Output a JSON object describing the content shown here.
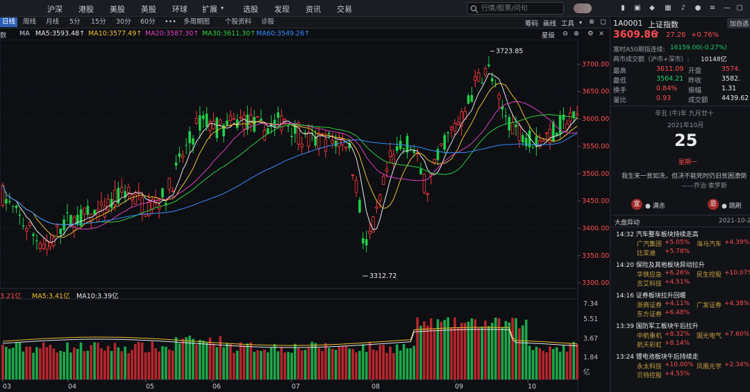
{
  "nav": {
    "items": [
      "沪深",
      "港股",
      "美股",
      "英股",
      "环球",
      "扩展",
      "选股",
      "发现",
      "资讯",
      "交易"
    ],
    "search_placeholder": "行情/股票/问句"
  },
  "toolbar": {
    "periods": [
      "日线",
      "周线",
      "月线",
      "5分",
      "15分",
      "30分",
      "60分",
      "•••",
      "多周期图",
      "个股资料",
      "诊股"
    ],
    "right": [
      "筹码",
      "画线",
      "工具"
    ],
    "sub_right": "星级"
  },
  "ma": {
    "label": "MA",
    "ma5": "MA5:3593.48↑",
    "ma10": "MA10:3577.49↑",
    "ma20": "MA20:3587.30↑",
    "ma30": "MA30:3611.30↑",
    "ma60": "MA60:3549.26↑"
  },
  "volume": {
    "vol": "3.21亿",
    "ma5": "MA5:3.41亿",
    "ma10": "MA10:3.39亿"
  },
  "chart_data": {
    "type": "candlestick",
    "price_ticks": [
      "3700.00",
      "3650.00",
      "3600.00",
      "3550.00",
      "3500.00",
      "3450.00",
      "3400.00",
      "3350.00",
      "3300.00"
    ],
    "volume_ticks": [
      "7.34",
      "5.51",
      "3.67",
      "1.84",
      "亿"
    ],
    "month_labels": [
      "03",
      "04",
      "05",
      "06",
      "07",
      "08",
      "09",
      "10"
    ],
    "high_label": "3723.85",
    "low_label": "3312.72",
    "ylim": [
      3290,
      3745
    ]
  },
  "panel": {
    "add_button": "加自选",
    "code": "1A0001",
    "name": "上证指数",
    "price": "3609.86",
    "arrow": "↑",
    "change": "27.26",
    "change_pct": "+0.76%",
    "a50_label": "富时A50期指连续:",
    "a50_value": "16159.00(-0.27%)",
    "turnover_label": "两市成交额（沪市+深市）:",
    "turnover_value": "10148亿",
    "stats": [
      {
        "l1": "最高",
        "v1": "3611.09",
        "l2": "开盘",
        "v2": "3574."
      },
      {
        "l1": "最低",
        "v1": "3564.21",
        "l2": "昨收",
        "v2": "3582."
      },
      {
        "l1": "换手",
        "v1": "0.84%",
        "l2": "振幅",
        "v2": "1.31"
      },
      {
        "l1": "量比",
        "v1": "0.93",
        "l2": "成交额",
        "v2": "4439.62"
      }
    ],
    "lunar": "辛丑 (牛)年 九月廿十",
    "month": "2021年10月",
    "day": "25",
    "weekday": "星期一",
    "quote": "我生来一贫如洗，但决不能死时仍旧贫困潦倒",
    "quote_author": "——乔治·索罗斯",
    "yi_label": "宜",
    "yi_text": "● 满赤",
    "ji_label": "忌",
    "ji_text": "● 跳刷",
    "news_title": "大盘异动",
    "news_date": "2021-10-2",
    "news": [
      {
        "time": "14:32",
        "title": "汽车整车板块持续走高",
        "rows": [
          [
            [
              "广汽集团",
              "+5.05%"
            ],
            [
              "海马汽车",
              "+4.39%"
            ]
          ],
          [
            [
              "比亚迪",
              "+5.78%"
            ]
          ]
        ]
      },
      {
        "time": "14:20",
        "title": "保险及其他板块异动拉升",
        "rows": [
          [
            [
              "华铁应急",
              "+6.26%"
            ],
            [
              "民生控股",
              "+10.07%"
            ]
          ],
          [
            [
              "吉艾科技",
              "+4.51%"
            ]
          ]
        ]
      },
      {
        "time": "14:16",
        "title": "证券板块拉升回暖",
        "rows": [
          [
            [
              "浙商证券",
              "+4.11%"
            ],
            [
              "广发证券",
              "+4.38%"
            ]
          ],
          [
            [
              "东方证券",
              "+6.48%"
            ]
          ]
        ]
      },
      {
        "time": "13:39",
        "title": "国防军工板块午后拉升",
        "rows": [
          [
            [
              "中航重机",
              "+8.32%"
            ],
            [
              "国光电气",
              "+7.60%"
            ]
          ],
          [
            [
              "航天彩虹",
              "+8.14%"
            ]
          ]
        ]
      },
      {
        "time": "13:24",
        "title": "锂电池板块午后持续走",
        "rows": [
          [
            [
              "永太科技",
              "+10.00%"
            ],
            [
              "凤凰光学",
              "+2.34%"
            ]
          ],
          [
            [
              "贝特控股",
              "+4.55%"
            ]
          ]
        ]
      }
    ]
  }
}
